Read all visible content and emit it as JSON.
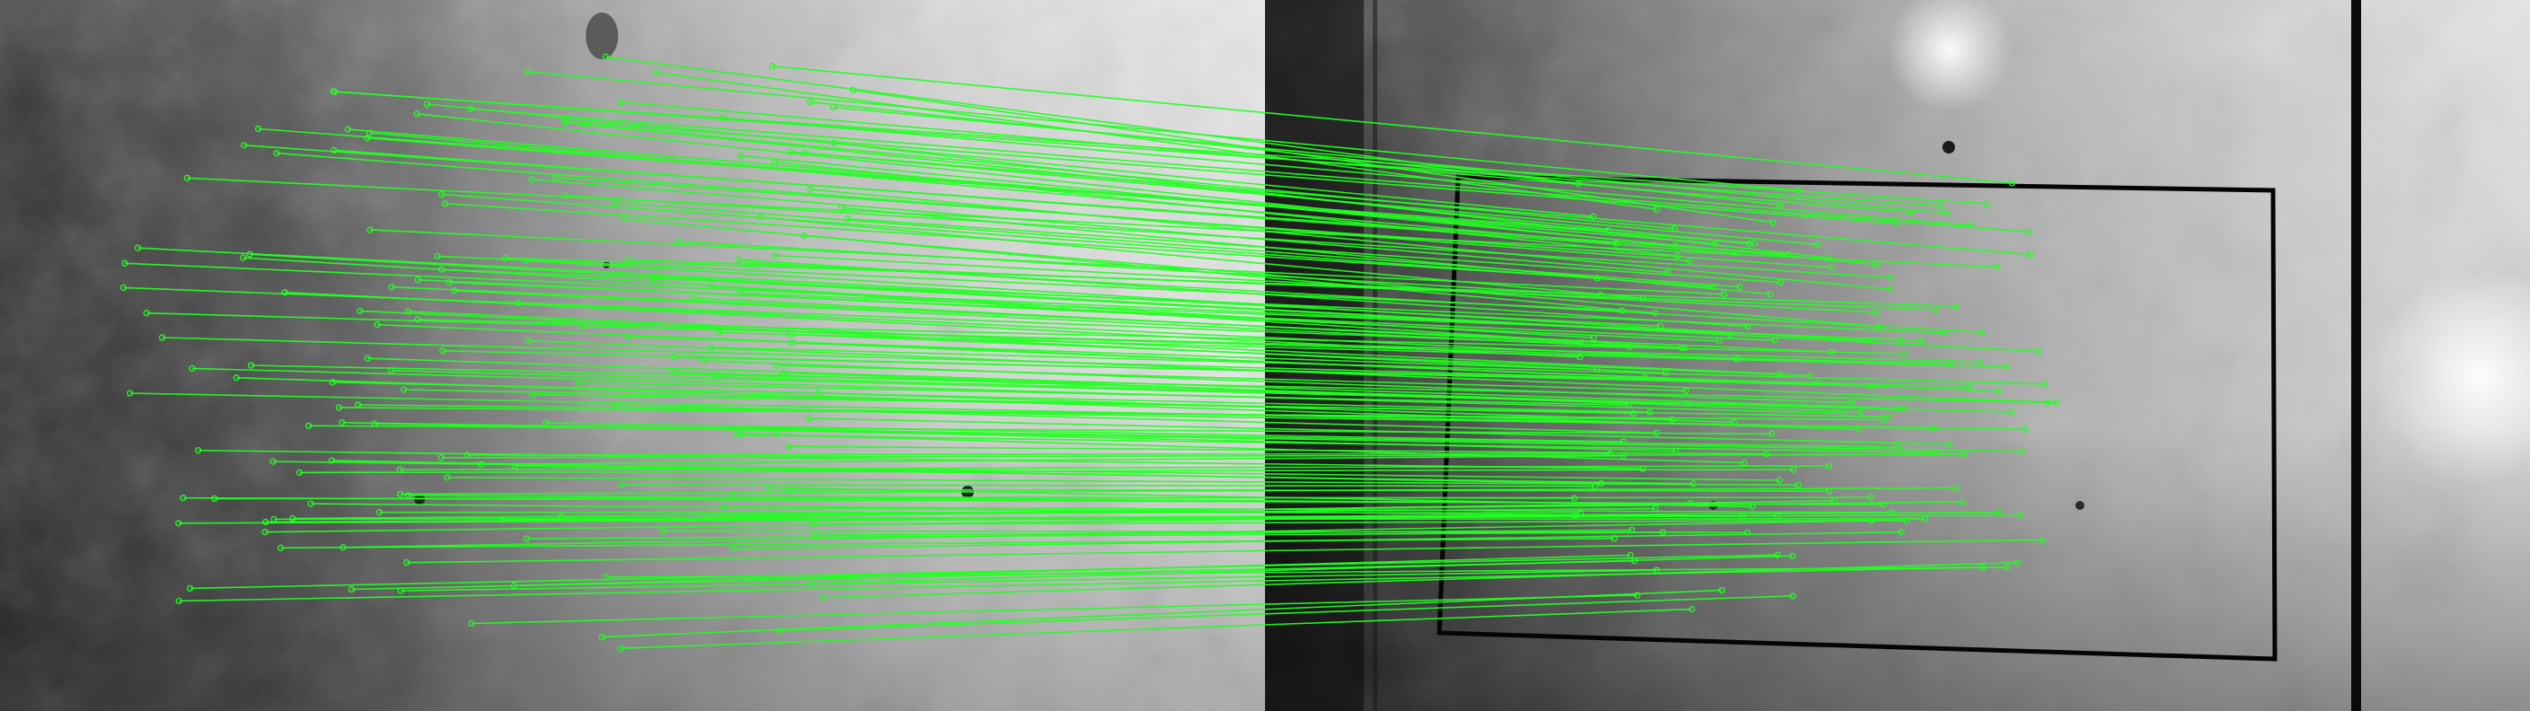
{
  "image": {
    "kind": "feature-match-visualization",
    "left_view": "concrete-wall-texture-a",
    "right_view": "concrete-wall-texture-b",
    "match_color": "#22ff22",
    "outline_color": "#050505",
    "match_count": 160
  }
}
